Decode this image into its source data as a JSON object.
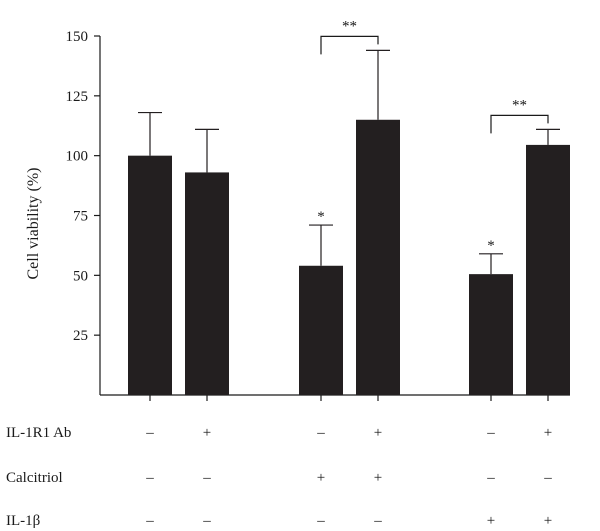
{
  "chart_data": {
    "type": "bar",
    "ylabel": "Cell viability (%)",
    "ylim": [
      0,
      150
    ],
    "yticks": [
      25,
      50,
      75,
      100,
      125,
      150
    ],
    "grid": false,
    "bar_color": "#231f20",
    "groups": [
      {
        "bars": [
          {
            "value": 100,
            "error": 18,
            "star": ""
          },
          {
            "value": 93,
            "error": 18,
            "star": ""
          }
        ],
        "bracket": ""
      },
      {
        "bars": [
          {
            "value": 54,
            "error": 17,
            "star": "*"
          },
          {
            "value": 115,
            "error": 29,
            "star": ""
          }
        ],
        "bracket": "**"
      },
      {
        "bars": [
          {
            "value": 50.5,
            "error": 8.5,
            "star": "*"
          },
          {
            "value": 104.5,
            "error": 6.5,
            "star": ""
          }
        ],
        "bracket": "**"
      }
    ],
    "condition_rows": [
      {
        "label": "IL-1R1 Ab",
        "signs": [
          "–",
          "+",
          "–",
          "+",
          "–",
          "+"
        ]
      },
      {
        "label": "Calcitriol",
        "signs": [
          "–",
          "–",
          "+",
          "+",
          "–",
          "–"
        ]
      },
      {
        "label": "IL-1β",
        "signs": [
          "–",
          "–",
          "–",
          "–",
          "+",
          "+"
        ]
      }
    ]
  }
}
